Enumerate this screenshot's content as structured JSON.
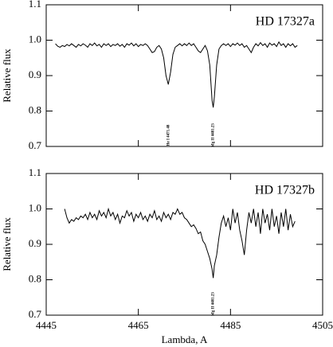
{
  "chart_data": [
    {
      "type": "line",
      "title": "HD 17327a",
      "ylabel": "Relative flux",
      "xlim": [
        4445,
        4505
      ],
      "ylim": [
        0.7,
        1.1
      ],
      "xticks": [
        4445,
        4465,
        4485,
        4505
      ],
      "xtick_labels": false,
      "yticks": [
        0.7,
        0.8,
        0.9,
        {
          "value": 1,
          "label": "1.0"
        },
        1.1
      ],
      "annotations": [
        {
          "text": "He I 4471.48",
          "x": 4471.48
        },
        {
          "text": "Mg II 4481.23",
          "x": 4481.23
        }
      ],
      "x": [
        4447,
        4447.5,
        4448,
        4448.5,
        4449,
        4449.5,
        4450,
        4450.5,
        4451,
        4451.5,
        4452,
        4452.5,
        4453,
        4453.5,
        4454,
        4454.5,
        4455,
        4455.5,
        4456,
        4456.5,
        4457,
        4457.5,
        4458,
        4458.5,
        4459,
        4459.5,
        4460,
        4460.5,
        4461,
        4461.5,
        4462,
        4462.5,
        4463,
        4463.5,
        4464,
        4464.5,
        4465,
        4465.5,
        4466,
        4466.5,
        4467,
        4467.5,
        4468,
        4468.5,
        4469,
        4469.5,
        4470,
        4470.5,
        4471,
        4471.5,
        4472,
        4472.5,
        4473,
        4473.5,
        4474,
        4474.5,
        4475,
        4475.5,
        4476,
        4476.5,
        4477,
        4477.5,
        4478,
        4478.5,
        4479,
        4479.5,
        4480,
        4480.5,
        4481,
        4481.25,
        4481.5,
        4482,
        4482.5,
        4483,
        4483.5,
        4484,
        4484.5,
        4485,
        4485.5,
        4486,
        4486.5,
        4487,
        4487.5,
        4488,
        4488.5,
        4489,
        4489.5,
        4490,
        4490.5,
        4491,
        4491.5,
        4492,
        4492.5,
        4493,
        4493.5,
        4494,
        4494.5,
        4495,
        4495.5,
        4496,
        4496.5,
        4497,
        4497.5,
        4498,
        4498.5,
        4499,
        4499.5
      ],
      "series": [
        {
          "name": "HD 17327a",
          "color": "#000000",
          "values": [
            0.99,
            0.983,
            0.98,
            0.985,
            0.982,
            0.988,
            0.984,
            0.99,
            0.985,
            0.98,
            0.988,
            0.984,
            0.99,
            0.986,
            0.98,
            0.99,
            0.985,
            0.992,
            0.984,
            0.988,
            0.98,
            0.99,
            0.985,
            0.99,
            0.982,
            0.988,
            0.985,
            0.99,
            0.983,
            0.988,
            0.98,
            0.99,
            0.986,
            0.992,
            0.984,
            0.99,
            0.982,
            0.988,
            0.985,
            0.99,
            0.985,
            0.975,
            0.965,
            0.968,
            0.98,
            0.985,
            0.975,
            0.95,
            0.9,
            0.875,
            0.91,
            0.96,
            0.98,
            0.985,
            0.99,
            0.984,
            0.99,
            0.985,
            0.992,
            0.985,
            0.99,
            0.98,
            0.97,
            0.965,
            0.975,
            0.985,
            0.97,
            0.93,
            0.83,
            0.81,
            0.84,
            0.93,
            0.975,
            0.985,
            0.99,
            0.985,
            0.99,
            0.982,
            0.99,
            0.986,
            0.992,
            0.985,
            0.99,
            0.98,
            0.985,
            0.975,
            0.965,
            0.98,
            0.99,
            0.984,
            0.993,
            0.985,
            0.99,
            0.98,
            0.992,
            0.986,
            0.99,
            0.982,
            0.995,
            0.985,
            0.99,
            0.98,
            0.99,
            0.984,
            0.99,
            0.98,
            0.985
          ]
        }
      ]
    },
    {
      "type": "line",
      "title": "HD 17327b",
      "ylabel": "Relative flux",
      "xlabel": "Lambda, A",
      "xlim": [
        4445,
        4505
      ],
      "ylim": [
        0.7,
        1.1
      ],
      "xticks": [
        4445,
        4465,
        4485,
        4505
      ],
      "xtick_labels": true,
      "yticks": [
        0.7,
        0.8,
        0.9,
        {
          "value": 1,
          "label": "1.0"
        },
        1.1
      ],
      "annotations": [
        {
          "text": "Mg II 4481.23",
          "x": 4481.23
        }
      ],
      "x": [
        4449,
        4449.5,
        4450,
        4450.5,
        4451,
        4451.5,
        4452,
        4452.5,
        4453,
        4453.5,
        4454,
        4454.5,
        4455,
        4455.5,
        4456,
        4456.5,
        4457,
        4457.5,
        4458,
        4458.5,
        4459,
        4459.5,
        4460,
        4460.5,
        4461,
        4461.5,
        4462,
        4462.5,
        4463,
        4463.5,
        4464,
        4464.5,
        4465,
        4465.5,
        4466,
        4466.5,
        4467,
        4467.5,
        4468,
        4468.5,
        4469,
        4469.5,
        4470,
        4470.5,
        4471,
        4471.5,
        4472,
        4472.5,
        4473,
        4473.5,
        4474,
        4474.5,
        4475,
        4475.5,
        4476,
        4476.5,
        4477,
        4477.5,
        4478,
        4478.5,
        4479,
        4479.5,
        4480,
        4480.5,
        4481,
        4481.25,
        4481.5,
        4482,
        4482.5,
        4483,
        4483.5,
        4484,
        4484.5,
        4485,
        4485.5,
        4486,
        4486.5,
        4487,
        4487.5,
        4488,
        4488.5,
        4489,
        4489.5,
        4490,
        4490.5,
        4491,
        4491.5,
        4492,
        4492.5,
        4493,
        4493.5,
        4494,
        4494.5,
        4495,
        4495.5,
        4496,
        4496.5,
        4497,
        4497.5,
        4498,
        4498.5,
        4499
      ],
      "series": [
        {
          "name": "HD 17327b",
          "color": "#000000",
          "values": [
            1.0,
            0.975,
            0.96,
            0.97,
            0.965,
            0.975,
            0.97,
            0.98,
            0.975,
            0.985,
            0.97,
            0.99,
            0.975,
            0.985,
            0.97,
            0.995,
            0.98,
            0.99,
            0.975,
            1.0,
            0.98,
            0.99,
            0.97,
            0.985,
            0.96,
            0.98,
            0.975,
            0.995,
            0.98,
            0.99,
            0.965,
            0.985,
            0.975,
            0.99,
            0.97,
            0.98,
            0.965,
            0.985,
            0.975,
            0.995,
            0.97,
            0.98,
            0.965,
            0.99,
            0.975,
            0.985,
            0.97,
            0.99,
            0.985,
            1.0,
            0.985,
            0.99,
            0.975,
            0.97,
            0.96,
            0.95,
            0.955,
            0.945,
            0.93,
            0.935,
            0.91,
            0.9,
            0.88,
            0.86,
            0.83,
            0.805,
            0.84,
            0.87,
            0.92,
            0.96,
            0.98,
            0.95,
            0.975,
            0.94,
            1.0,
            0.96,
            0.99,
            0.94,
            0.91,
            0.87,
            0.94,
            0.99,
            0.96,
            1.0,
            0.95,
            0.99,
            0.93,
            1.0,
            0.96,
            0.985,
            0.94,
            1.0,
            0.95,
            0.98,
            0.93,
            0.99,
            0.95,
            1.0,
            0.94,
            0.985,
            0.95,
            0.965
          ]
        }
      ]
    }
  ]
}
